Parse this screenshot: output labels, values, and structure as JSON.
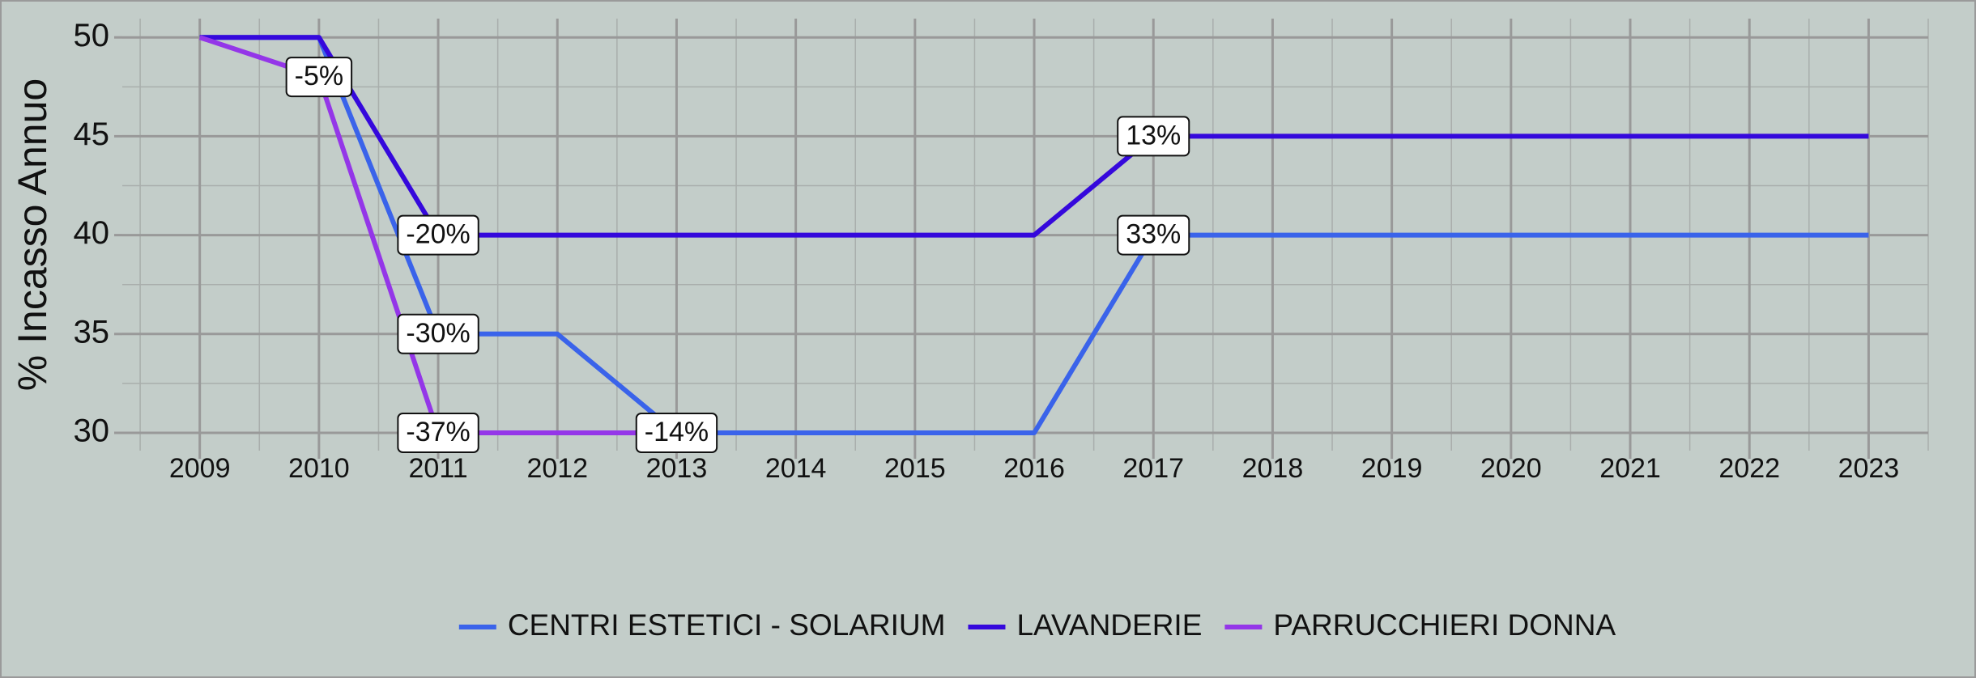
{
  "chart_data": {
    "type": "line",
    "y_label": "% Incasso Annuo",
    "x": [
      2009,
      2010,
      2011,
      2012,
      2013,
      2014,
      2015,
      2016,
      2017,
      2018,
      2019,
      2020,
      2021,
      2022,
      2023
    ],
    "xticks": [
      2009,
      2010,
      2011,
      2012,
      2013,
      2014,
      2015,
      2016,
      2017,
      2018,
      2019,
      2020,
      2021,
      2022,
      2023
    ],
    "xlim": [
      2008.35,
      2023.5
    ],
    "ylim": [
      29.1,
      50.95
    ],
    "yticks": [
      30,
      35,
      40,
      45,
      50
    ],
    "grid": true,
    "legend": "bottom",
    "series": [
      {
        "name": "CENTRI ESTETICI - SOLARIUM",
        "color": "#3a63ea",
        "values": [
          50,
          50,
          35,
          35,
          30,
          30,
          30,
          30,
          40,
          40,
          40,
          40,
          40,
          40,
          40
        ]
      },
      {
        "name": "LAVANDERIE",
        "color": "#3508dc",
        "values": [
          50,
          50,
          40,
          40,
          40,
          40,
          40,
          40,
          45,
          45,
          45,
          45,
          45,
          45,
          45
        ]
      },
      {
        "name": "PARRUCCHIERI DONNA",
        "color": "#9436e8",
        "values": [
          50,
          48,
          30,
          30,
          30,
          null,
          null,
          null,
          null,
          null,
          null,
          null,
          null,
          null,
          null
        ]
      }
    ],
    "annotations": [
      {
        "x": 2010,
        "y": 48,
        "text": "-5%"
      },
      {
        "x": 2011,
        "y": 40,
        "text": "-20%"
      },
      {
        "x": 2011,
        "y": 35,
        "text": "-30%"
      },
      {
        "x": 2011,
        "y": 30,
        "text": "-37%"
      },
      {
        "x": 2013,
        "y": 30,
        "text": "-14%"
      },
      {
        "x": 2017,
        "y": 45,
        "text": "13%"
      },
      {
        "x": 2017,
        "y": 40,
        "text": "33%"
      }
    ]
  }
}
